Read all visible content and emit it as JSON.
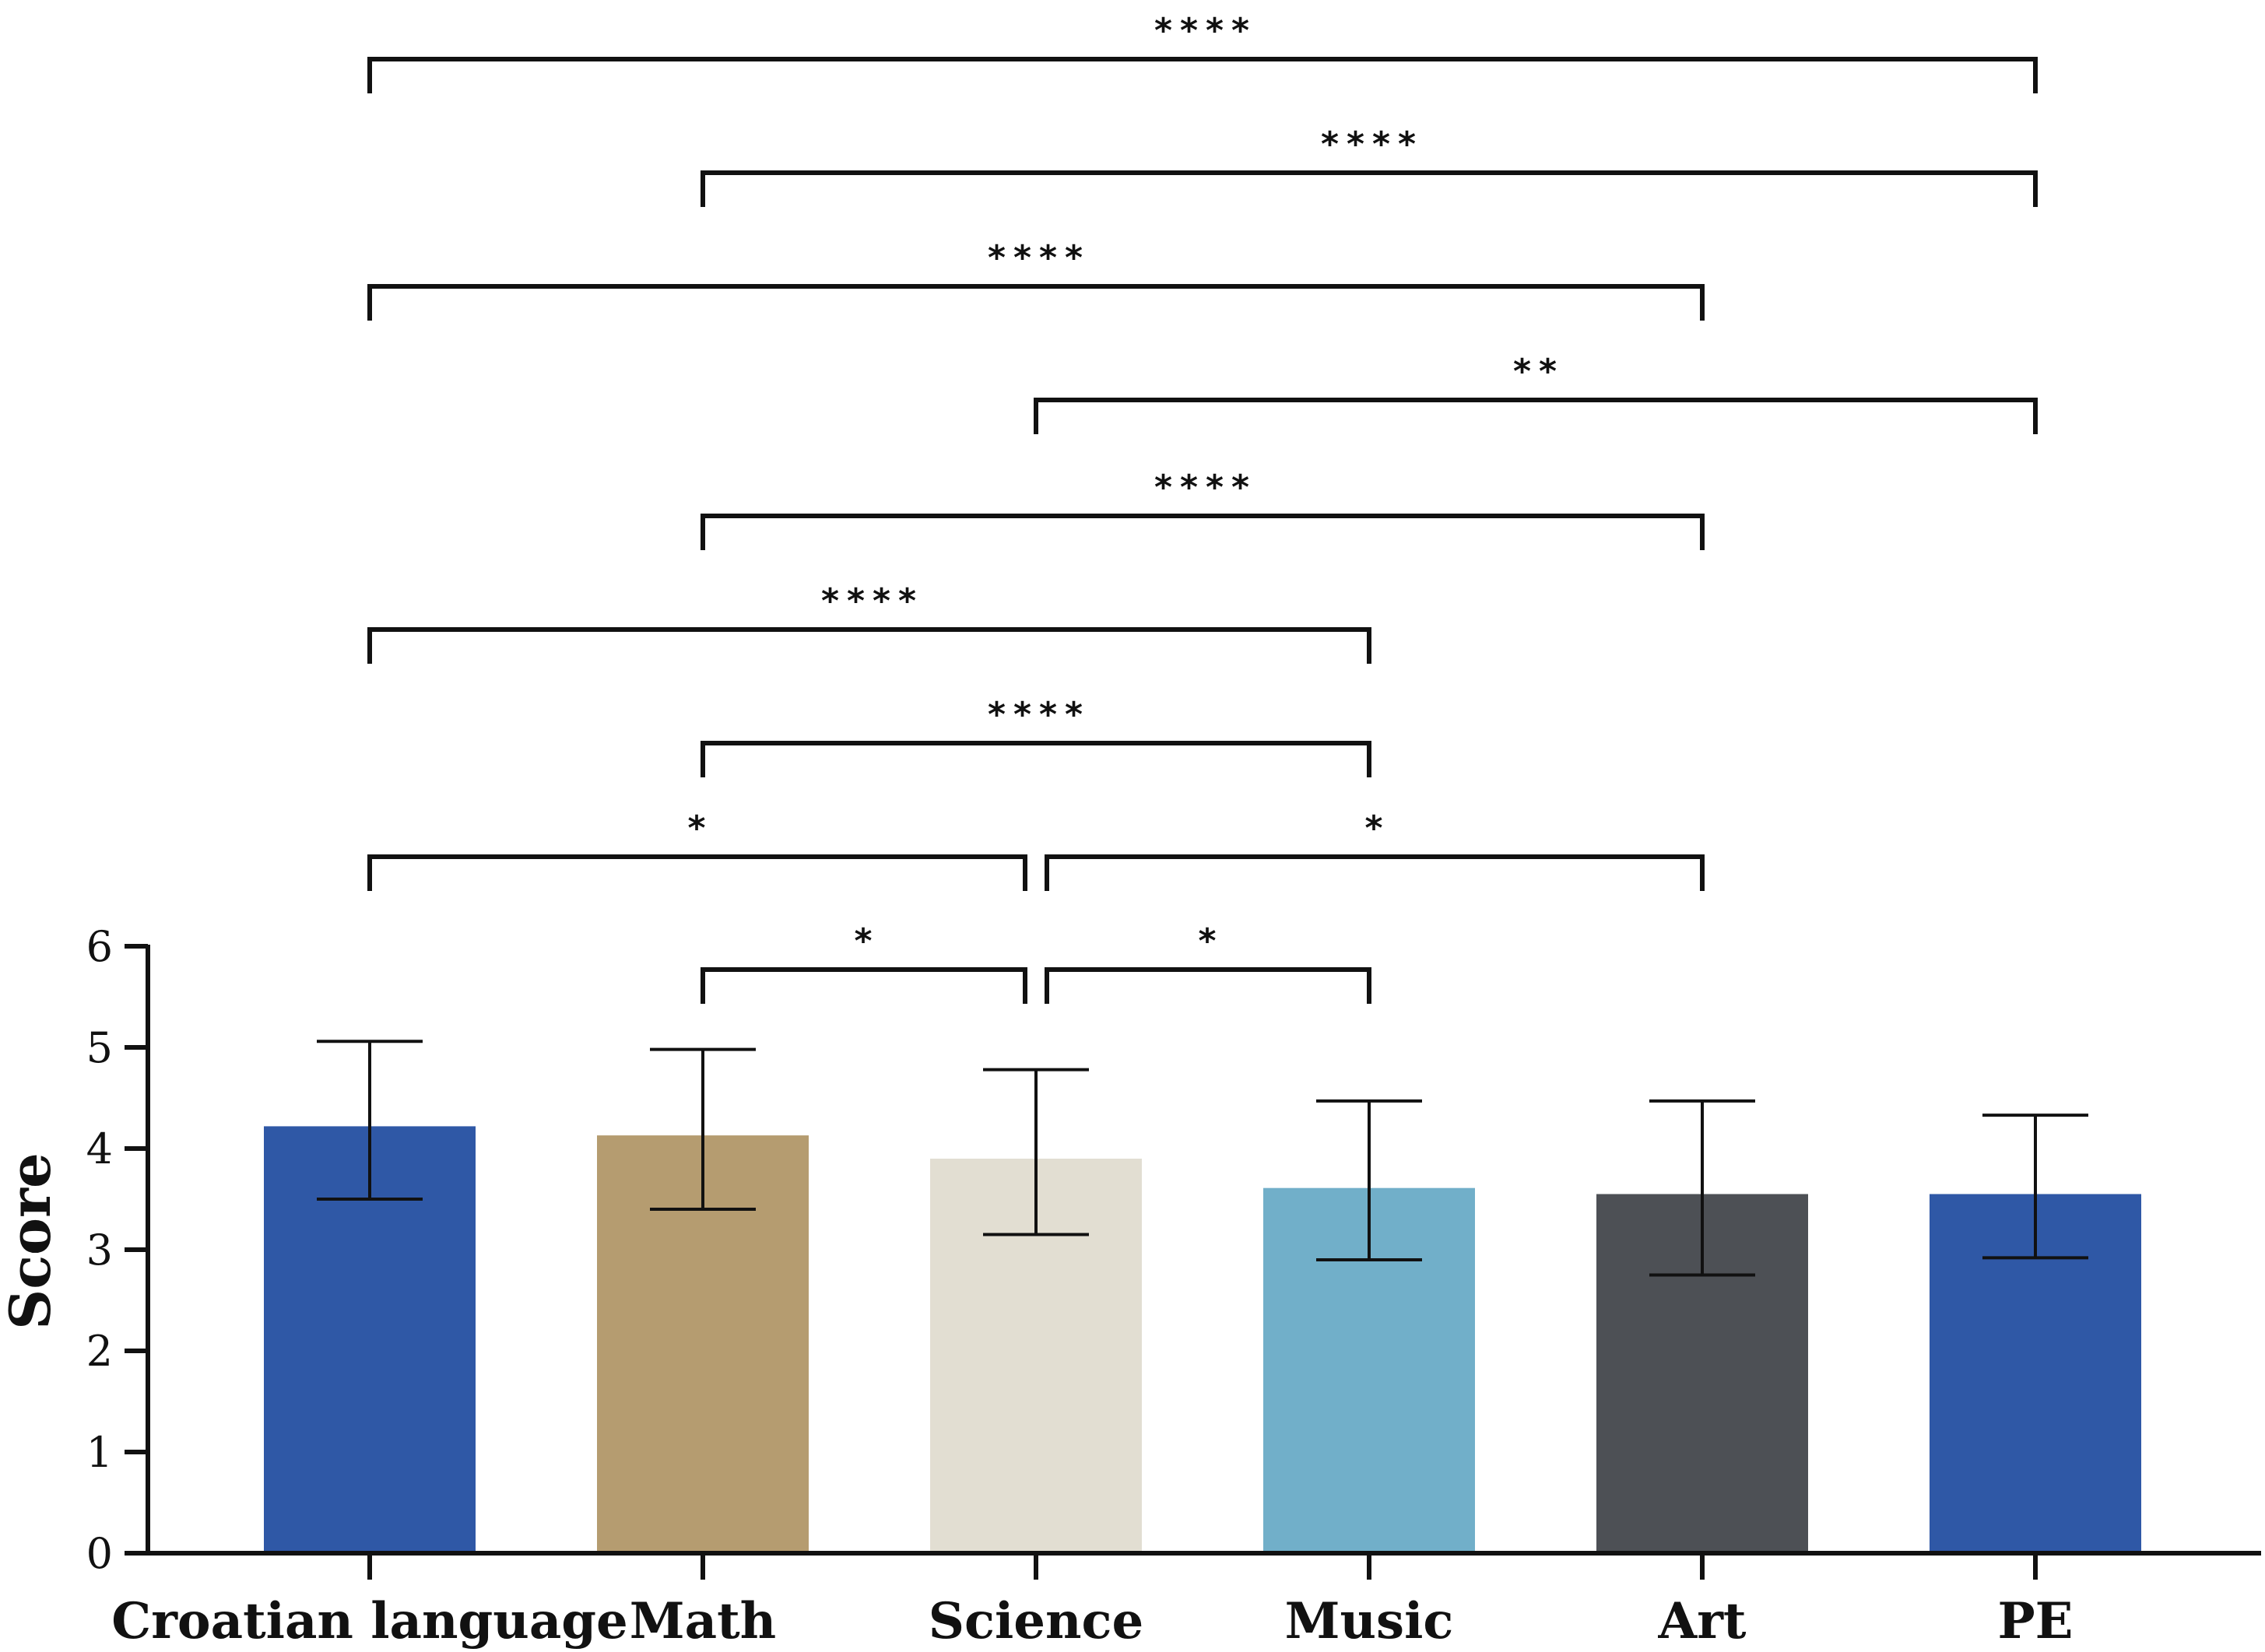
{
  "chart_data": {
    "type": "bar",
    "title": "",
    "xlabel": "",
    "ylabel": "Score",
    "ylim": [
      0,
      6
    ],
    "yticks": [
      0,
      1,
      2,
      3,
      4,
      5,
      6
    ],
    "categories": [
      "Croatian language",
      "Math",
      "Science",
      "Music",
      "Art",
      "PE"
    ],
    "values": [
      4.22,
      4.13,
      3.9,
      3.61,
      3.55,
      3.55
    ],
    "error_upper": [
      5.06,
      4.98,
      4.78,
      4.47,
      4.47,
      4.33
    ],
    "error_lower": [
      3.5,
      3.4,
      3.15,
      2.9,
      2.75,
      2.92
    ],
    "colors": [
      "#2F58A6",
      "#B59C70",
      "#E2DED2",
      "#71AFC9",
      "#4D5055",
      "#2F58A6"
    ],
    "significance": [
      {
        "from": "Math",
        "to": "Science",
        "label": "*"
      },
      {
        "from": "Science",
        "to": "Music",
        "label": "*"
      },
      {
        "from": "Croatian language",
        "to": "Science",
        "label": "*"
      },
      {
        "from": "Science",
        "to": "Art",
        "label": "*"
      },
      {
        "from": "Math",
        "to": "Music",
        "label": "****"
      },
      {
        "from": "Croatian language",
        "to": "Music",
        "label": "****"
      },
      {
        "from": "Math",
        "to": "Art",
        "label": "****"
      },
      {
        "from": "Science",
        "to": "PE",
        "label": "**"
      },
      {
        "from": "Croatian language",
        "to": "Art",
        "label": "****"
      },
      {
        "from": "Math",
        "to": "PE",
        "label": "****"
      },
      {
        "from": "Croatian language",
        "to": "PE",
        "label": "****"
      }
    ]
  }
}
